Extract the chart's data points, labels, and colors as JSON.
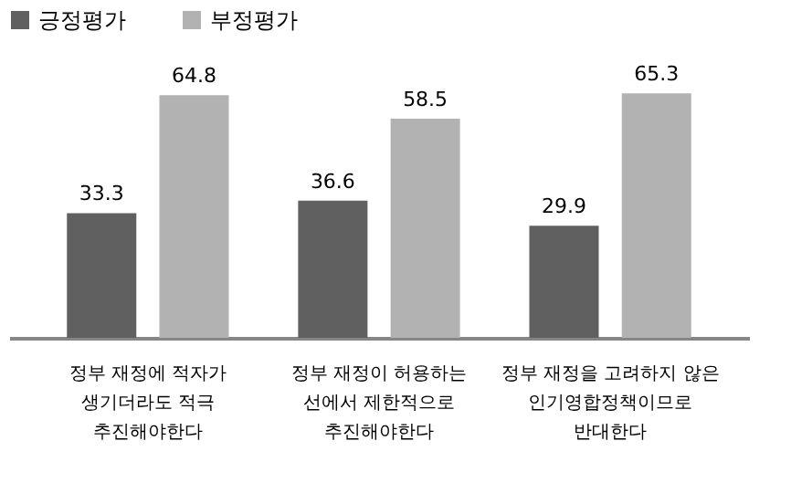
{
  "chart_data": {
    "type": "bar",
    "categories": [
      "정부 재정에 적자가\n생기더라도 적극\n추진해야한다",
      "정부 재정이 허용하는\n선에서 제한적으로\n추진해야한다",
      "정부 재정을 고려하지 않은\n인기영합정책이므로\n반대한다"
    ],
    "series": [
      {
        "name": "긍정평가",
        "color": "#606060",
        "values": [
          33.3,
          36.6,
          29.9
        ]
      },
      {
        "name": "부정평가",
        "color": "#b2b2b2",
        "values": [
          64.8,
          58.5,
          65.3
        ]
      }
    ],
    "data_labels": true,
    "legend": "top",
    "grid": false
  }
}
